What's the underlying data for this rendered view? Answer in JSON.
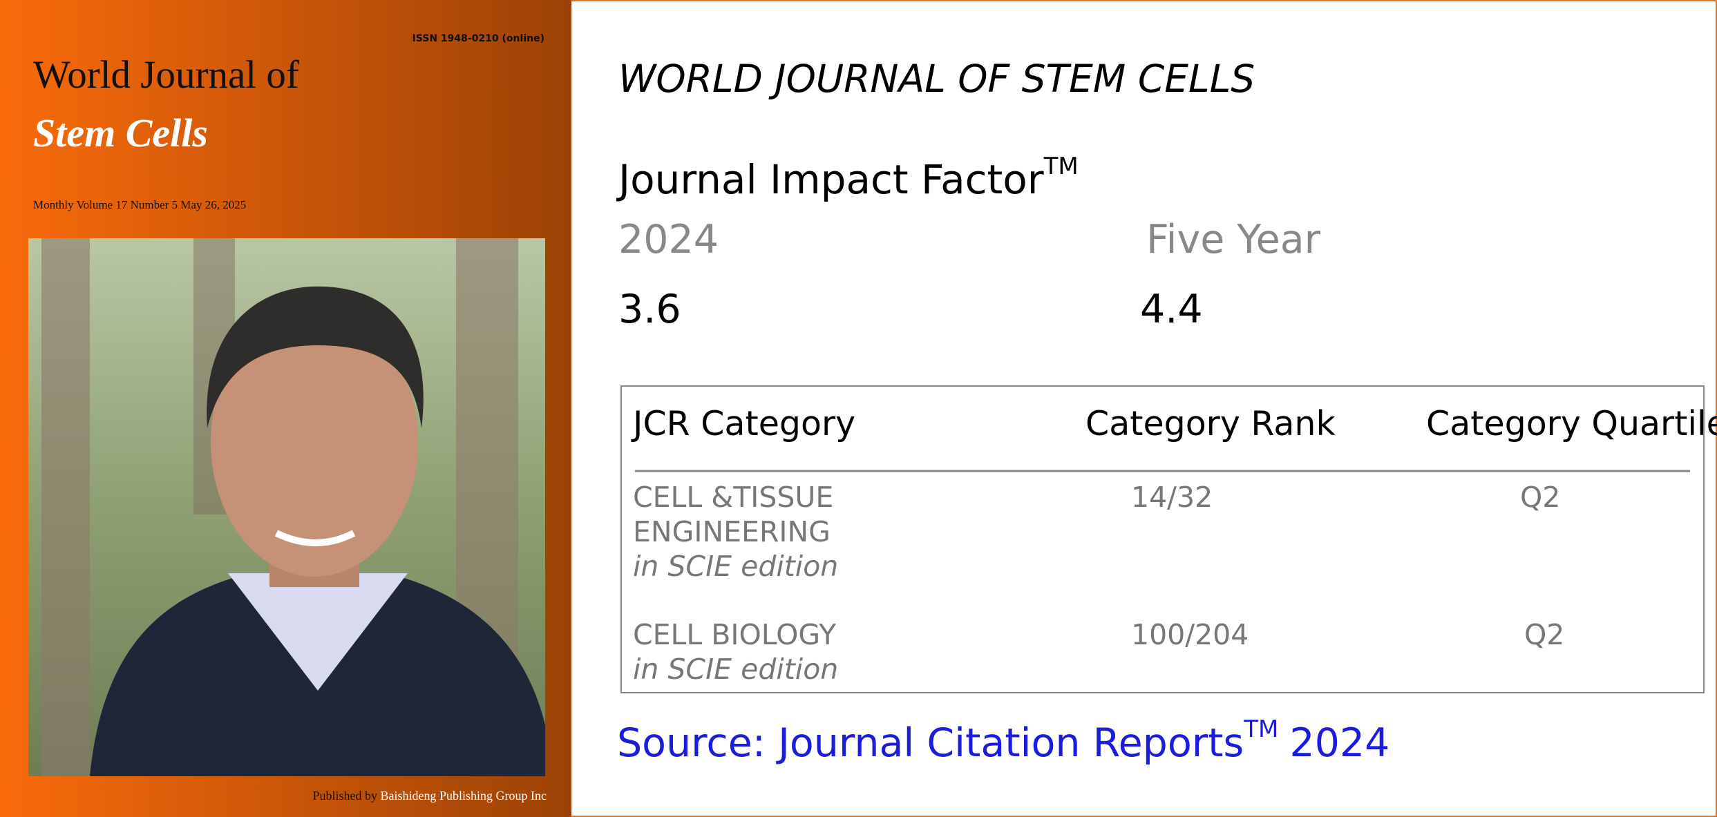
{
  "cover": {
    "issn": "ISSN 1948-0210 (online)",
    "title_line1": "World Journal of",
    "title_line2": "Stem Cells",
    "issue": "Monthly Volume 17 Number 5 May 26, 2025",
    "publisher_prefix": "Published by",
    "publisher": "Baishideng Publishing Group Inc"
  },
  "info": {
    "journal": "WORLD JOURNAL OF STEM CELLS",
    "heading": "Journal Impact Factor",
    "heading_sup": "TM",
    "periods": [
      {
        "label": "2024",
        "value": 3.6
      },
      {
        "label": "Five Year",
        "value": 4.4
      }
    ]
  },
  "table": {
    "headers": [
      "JCR Category",
      "Category Rank",
      "Category Quartile"
    ],
    "rows": [
      {
        "category_lines": [
          "CELL &TISSUE",
          "ENGINEERING"
        ],
        "edition": "in SCIE edition",
        "rank": "14/32",
        "quartile": "Q2"
      },
      {
        "category_lines": [
          "CELL BIOLOGY"
        ],
        "edition": "in SCIE edition",
        "rank": "100/204",
        "quartile": "Q2"
      }
    ]
  },
  "source": {
    "text": "Source: Journal Citation Reports",
    "sup": "TM",
    "year": "2024"
  }
}
